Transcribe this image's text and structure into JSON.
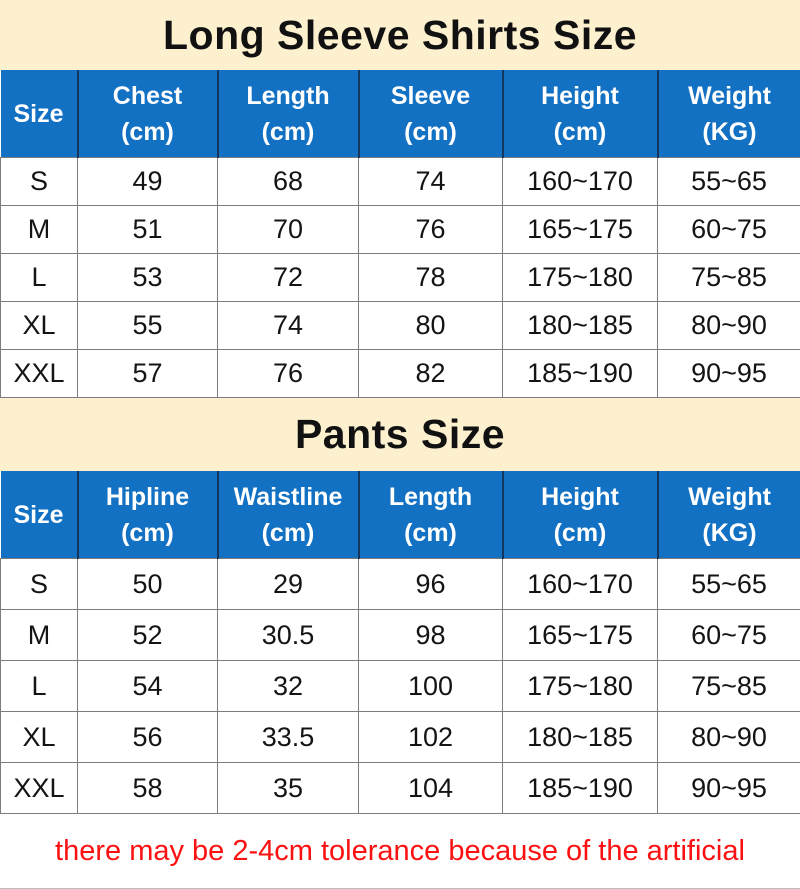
{
  "theme": {
    "title_band_bg": "#FCF0CE",
    "header_bg": "#1271C3",
    "header_text_color": "#FFFFFF",
    "header_divider_color": "#14375F",
    "body_bg": "#FFFFFF",
    "text_color": "#141414",
    "grid_line_color": "#7D7D7D",
    "note_color": "#FB1111"
  },
  "shirts": {
    "title": "Long Sleeve Shirts Size",
    "columns": [
      {
        "label": "Size",
        "unit": ""
      },
      {
        "label": "Chest",
        "unit": "(cm)"
      },
      {
        "label": "Length",
        "unit": "(cm)"
      },
      {
        "label": "Sleeve",
        "unit": "(cm)"
      },
      {
        "label": "Height",
        "unit": "(cm)"
      },
      {
        "label": "Weight",
        "unit": "(KG)"
      }
    ],
    "rows": [
      [
        "S",
        "49",
        "68",
        "74",
        "160~170",
        "55~65"
      ],
      [
        "M",
        "51",
        "70",
        "76",
        "165~175",
        "60~75"
      ],
      [
        "L",
        "53",
        "72",
        "78",
        "175~180",
        "75~85"
      ],
      [
        "XL",
        "55",
        "74",
        "80",
        "180~185",
        "80~90"
      ],
      [
        "XXL",
        "57",
        "76",
        "82",
        "185~190",
        "90~95"
      ]
    ]
  },
  "pants": {
    "title": "Pants Size",
    "columns": [
      {
        "label": "Size",
        "unit": ""
      },
      {
        "label": "Hipline",
        "unit": "(cm)"
      },
      {
        "label": "Waistline",
        "unit": "(cm)"
      },
      {
        "label": "Length",
        "unit": "(cm)"
      },
      {
        "label": "Height",
        "unit": "(cm)"
      },
      {
        "label": "Weight",
        "unit": "(KG)"
      }
    ],
    "rows": [
      [
        "S",
        "50",
        "29",
        "96",
        "160~170",
        "55~65"
      ],
      [
        "M",
        "52",
        "30.5",
        "98",
        "165~175",
        "60~75"
      ],
      [
        "L",
        "54",
        "32",
        "100",
        "175~180",
        "75~85"
      ],
      [
        "XL",
        "56",
        "33.5",
        "102",
        "180~185",
        "80~90"
      ],
      [
        "XXL",
        "58",
        "35",
        "104",
        "185~190",
        "90~95"
      ]
    ]
  },
  "note": "there may be 2-4cm tolerance because of the artificial"
}
